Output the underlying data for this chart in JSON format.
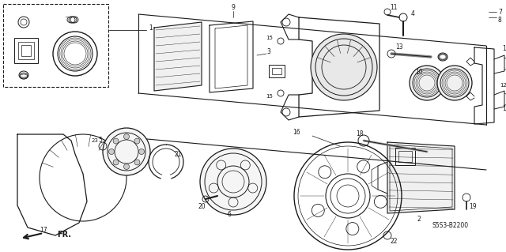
{
  "bg_color": "#ffffff",
  "line_color": "#1a1a1a",
  "diagram_code": "S5S3-B2200",
  "arrow_label": "FR."
}
